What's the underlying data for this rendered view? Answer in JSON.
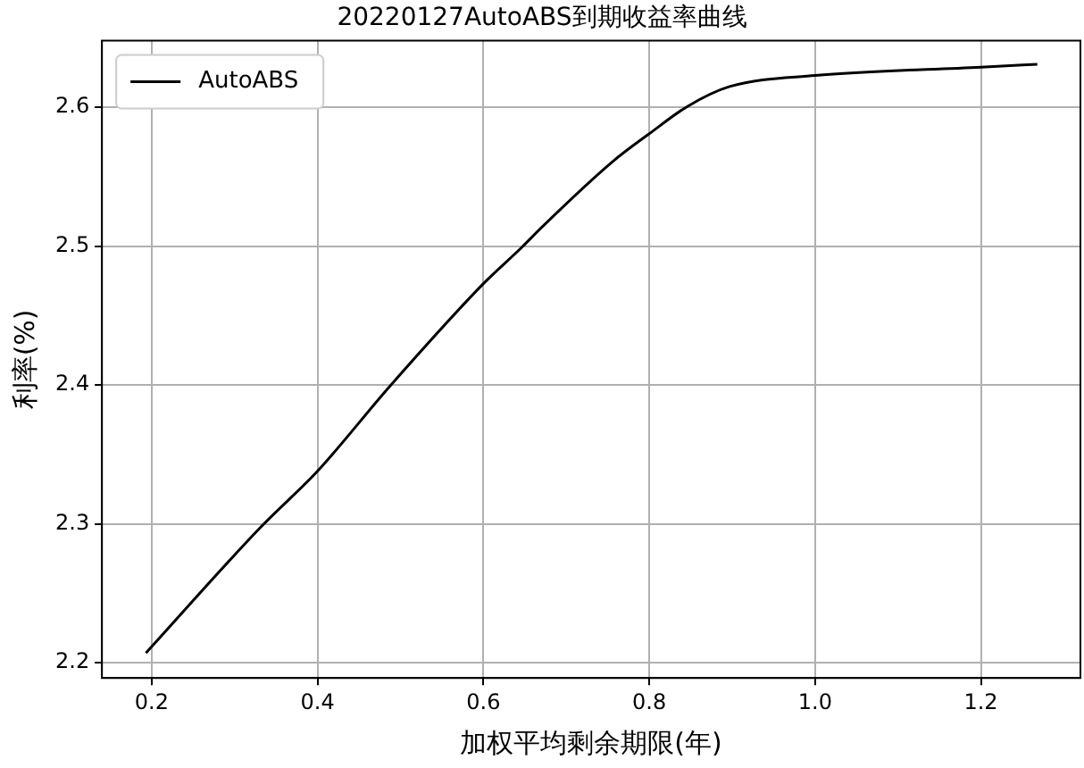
{
  "chart_data": {
    "type": "line",
    "title": "20220127AutoABS到期收益率曲线",
    "xlabel": "加权平均剩余期限(年)",
    "ylabel": "利率(%)",
    "series": [
      {
        "name": "AutoABS",
        "color": "#000000",
        "x": [
          0.193,
          0.332,
          0.4,
          0.487,
          0.6,
          0.646,
          0.671,
          0.756,
          0.8,
          0.847,
          0.897,
          1.0,
          1.2,
          1.268
        ],
        "values": [
          2.207,
          2.298,
          2.338,
          2.399,
          2.473,
          2.499,
          2.514,
          2.561,
          2.581,
          2.601,
          2.615,
          2.623,
          2.629,
          2.631
        ]
      }
    ],
    "xlim": [
      0.14,
      1.32
    ],
    "xticks": [
      {
        "value": 0.2,
        "label": "0.2"
      },
      {
        "value": 0.4,
        "label": "0.4"
      },
      {
        "value": 0.6,
        "label": "0.6"
      },
      {
        "value": 0.8,
        "label": "0.8"
      },
      {
        "value": 1.0,
        "label": "1.0"
      },
      {
        "value": 1.2,
        "label": "1.2"
      }
    ],
    "ylim": [
      2.189,
      2.648
    ],
    "yticks": [
      {
        "value": 2.2,
        "label": "2.2"
      },
      {
        "value": 2.3,
        "label": "2.3"
      },
      {
        "value": 2.4,
        "label": "2.4"
      },
      {
        "value": 2.5,
        "label": "2.5"
      },
      {
        "value": 2.6,
        "label": "2.6"
      }
    ],
    "grid": true,
    "legend": "top left",
    "marker": "none",
    "line_style": "solid"
  }
}
